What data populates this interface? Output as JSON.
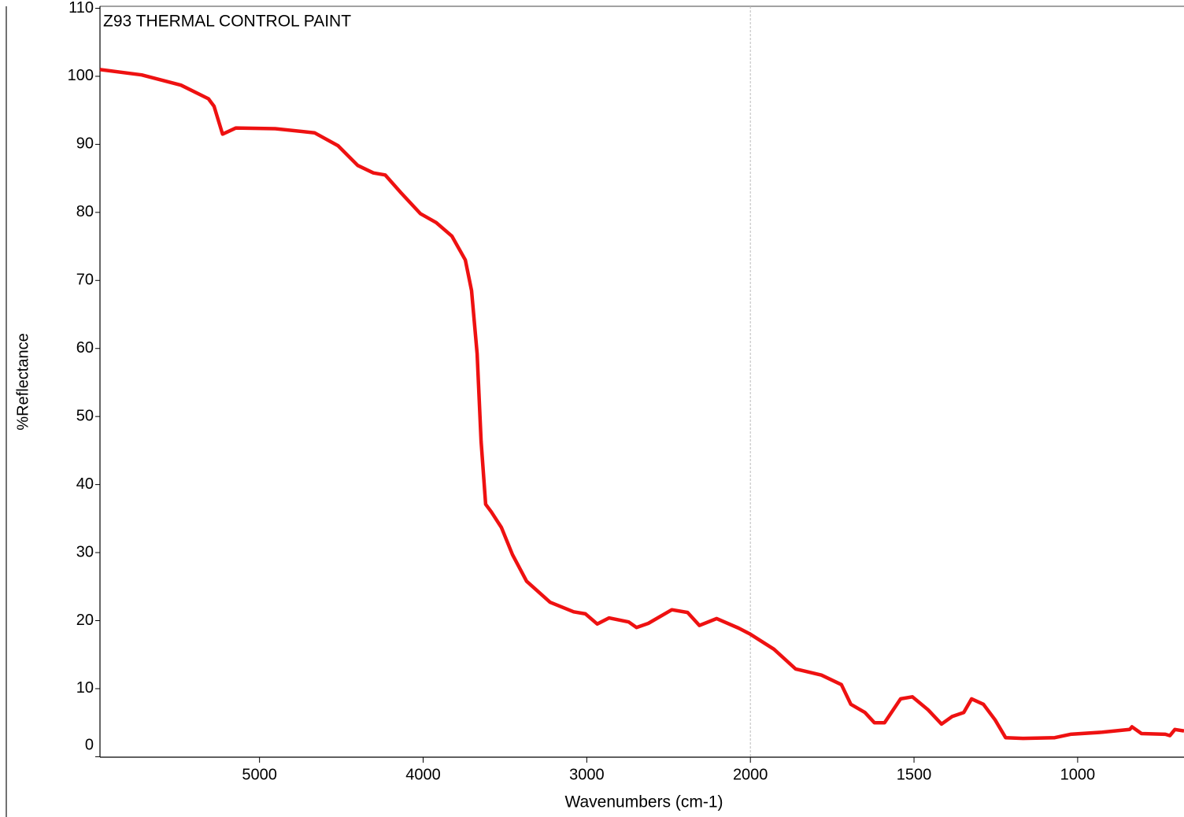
{
  "chart_data": {
    "type": "line",
    "title": "Z93 THERMAL CONTROL PAINT",
    "title_color": "#ff1a1a",
    "x_label": "Wavenumbers (cm-1)",
    "y_label": "%Reflectance",
    "x": [
      5975,
      5720,
      5480,
      5312,
      5278,
      5226,
      5144,
      4904,
      4664,
      4520,
      4400,
      4304,
      4232,
      4136,
      4016,
      3920,
      3824,
      3742,
      3704,
      3670,
      3646,
      3618,
      3584,
      3522,
      3454,
      3368,
      3224,
      3080,
      3008,
      2936,
      2864,
      2744,
      2696,
      2624,
      2480,
      2384,
      2312,
      2206,
      2072,
      2000,
      1928,
      1862,
      1783,
      1722,
      1693,
      1650,
      1621,
      1590,
      1541,
      1505,
      1457,
      1416,
      1384,
      1348,
      1324,
      1288,
      1252,
      1220,
      1167,
      1070,
      1022,
      925,
      841,
      834,
      805,
      732,
      718,
      703,
      675
    ],
    "values": [
      101,
      100.2,
      98.7,
      96.7,
      95.6,
      91.5,
      92.4,
      92.3,
      91.7,
      89.8,
      86.9,
      85.8,
      85.5,
      82.9,
      79.8,
      78.5,
      76.5,
      73.0,
      68.5,
      59.2,
      46.4,
      37.1,
      36.0,
      33.7,
      29.7,
      25.8,
      22.7,
      21.3,
      21.0,
      19.5,
      20.4,
      19.8,
      19.0,
      19.6,
      21.6,
      21.2,
      19.3,
      20.3,
      18.9,
      18.0,
      15.8,
      12.9,
      12.0,
      10.6,
      7.7,
      6.5,
      5.0,
      5.0,
      8.5,
      8.8,
      6.9,
      4.8,
      5.9,
      6.5,
      8.5,
      7.7,
      5.4,
      2.8,
      2.7,
      2.8,
      3.3,
      3.6,
      4.0,
      4.4,
      3.4,
      3.3,
      3.1,
      4.0,
      3.8
    ],
    "color": "#ee1111",
    "xlim": [
      5975,
      675
    ],
    "x_break": 2000,
    "xticks": [
      5000,
      4000,
      3000,
      2000,
      1500,
      1000
    ],
    "ylim": [
      0,
      110
    ],
    "yticks": [
      0,
      10,
      20,
      30,
      40,
      50,
      60,
      70,
      80,
      90,
      100,
      110
    ]
  }
}
